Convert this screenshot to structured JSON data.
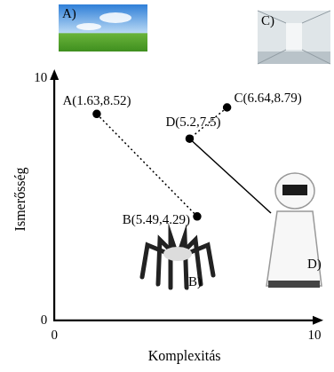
{
  "chart_data": {
    "type": "scatter",
    "x_label": "Komplexitás",
    "y_label": "Ismerősség",
    "xlim": [
      0,
      10
    ],
    "xticks": [
      0,
      10
    ],
    "ylim": [
      0,
      10
    ],
    "yticks": [
      0,
      10
    ],
    "grid": false,
    "series": [
      {
        "x": [
          1.63,
          5.49
        ],
        "values": [
          8.52,
          4.29
        ],
        "point_labels": [
          "A(1.63,8.52)",
          "B(5.49,4.29)"
        ],
        "color": "#000000",
        "marker": "circle",
        "line_style": "dotted"
      },
      {
        "x": [
          6.64,
          5.2
        ],
        "values": [
          8.79,
          7.5
        ],
        "point_labels": [
          "C(6.64,8.79)",
          "D(5.2,7.5)"
        ],
        "color": "#000000",
        "marker": "circle",
        "line_style": "dotted"
      }
    ],
    "annotations": [
      "A)",
      "B)",
      "C)",
      "D)"
    ]
  }
}
